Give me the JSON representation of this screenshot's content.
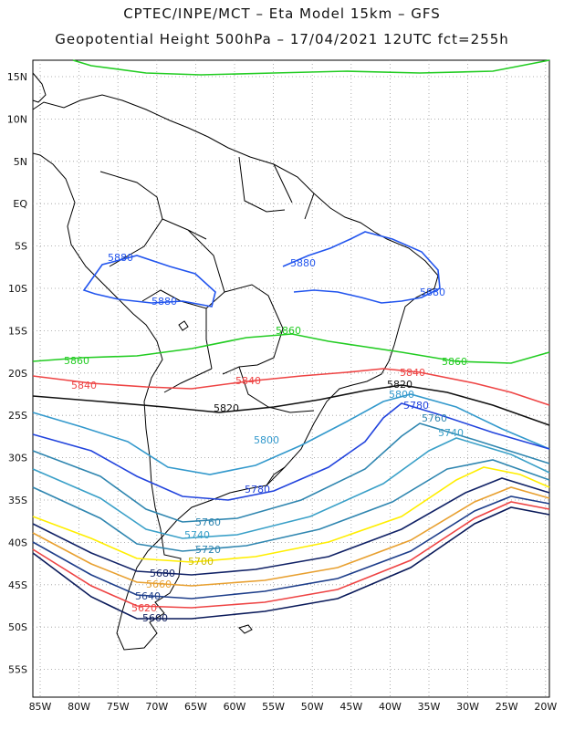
{
  "header": {
    "line1": "CPTEC/INPE/MCT –  Eta Model 15km – GFS",
    "line2": "Geopotential Height 500hPa – 17/04/2021 12UTC fct=255h"
  },
  "lon_labels": [
    "85W",
    "80W",
    "75W",
    "70W",
    "65W",
    "60W",
    "55W",
    "50W",
    "45W",
    "40W",
    "35W",
    "30W",
    "25W",
    "20W"
  ],
  "lat_labels": [
    "15N",
    "10N",
    "5N",
    "EQ",
    "5S",
    "10S",
    "15S",
    "20S",
    "25S",
    "30S",
    "35S",
    "40S",
    "45S",
    "50S",
    "55S"
  ],
  "contours": [
    {
      "value": "5880",
      "color": "#2255ee"
    },
    {
      "value": "5860",
      "color": "#22cc22"
    },
    {
      "value": "5840",
      "color": "#ee4444"
    },
    {
      "value": "5820",
      "color": "#111111"
    },
    {
      "value": "5800",
      "color": "#3399cc"
    },
    {
      "value": "5780",
      "color": "#2244dd"
    },
    {
      "value": "5760",
      "color": "#2f86b0"
    },
    {
      "value": "5740",
      "color": "#3aa0c8"
    },
    {
      "value": "5720",
      "color": "#2f86b0"
    },
    {
      "value": "5700",
      "color": "#ffee00"
    },
    {
      "value": "5680",
      "color": "#112266"
    },
    {
      "value": "5660",
      "color": "#e8a030"
    },
    {
      "value": "5640",
      "color": "#1e3e8a"
    },
    {
      "value": "5620",
      "color": "#ee4444"
    },
    {
      "value": "5600",
      "color": "#0a1a5a"
    }
  ]
}
